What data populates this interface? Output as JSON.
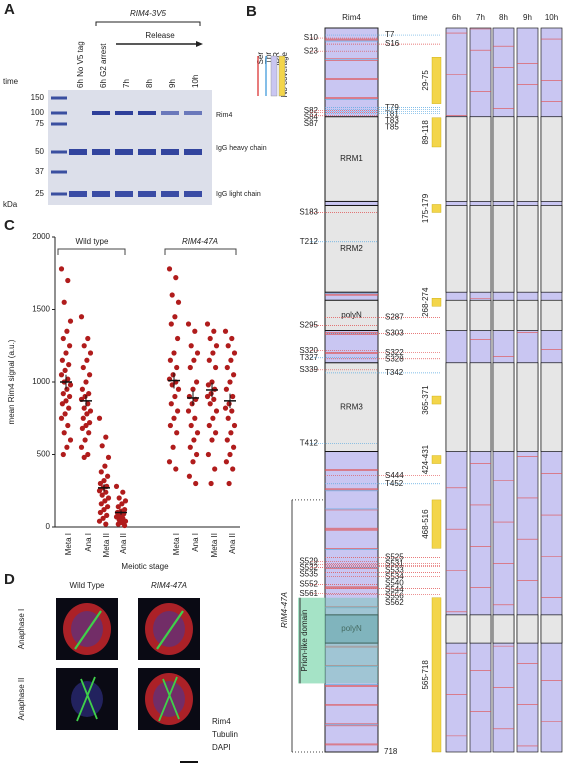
{
  "panel_a": {
    "label": "A",
    "time_label": "time",
    "unit": "kDa",
    "lanes": [
      "6h No V5 tag",
      "6h G2 arrest",
      "7h",
      "8h",
      "9h",
      "10h"
    ],
    "construct": "RIM4-3V5",
    "release": "Release",
    "markers": [
      150,
      100,
      75,
      50,
      37,
      25
    ],
    "bands": [
      "Rim4",
      "IgG heavy chain",
      "IgG light chain"
    ]
  },
  "panel_b": {
    "label": "B",
    "protein": "Rim4",
    "length": 718,
    "time_label": "time",
    "times": [
      "6h",
      "7h",
      "8h",
      "9h",
      "10h"
    ],
    "legend": [
      "Ser",
      "Thr",
      "IDR",
      "No coverage"
    ],
    "domains": [
      "RRM1",
      "RRM2",
      "polyN",
      "RRM3",
      "polyN"
    ],
    "sites_left": [
      "S10",
      "S23",
      "S82",
      "S84",
      "S87",
      "S183",
      "T212",
      "S295",
      "S320",
      "T327",
      "S339",
      "T412",
      "S529",
      "S532",
      "S535",
      "S552",
      "S561"
    ],
    "sites_right": [
      "T7",
      "S16",
      "T79",
      "T81",
      "T83",
      "T85",
      "S287",
      "S303",
      "S322",
      "S328",
      "T342",
      "S444",
      "T452",
      "S525",
      "S531",
      "S533",
      "S534",
      "S540",
      "S544",
      "S556",
      "S562"
    ],
    "no_coverage": [
      "29-75",
      "89-118",
      "175-179",
      "268-274",
      "365-371",
      "424-431",
      "468-516",
      "565-718"
    ],
    "mutant": "RIM4-47A",
    "prion": "Prion-like domain"
  },
  "chart_data": {
    "type": "strip",
    "label": "C",
    "ylabel": "mean Rim4 signal (a.u.)",
    "xlabel": "Meiotic stage",
    "groups": [
      "Wild type",
      "RIM4-47A"
    ],
    "categories": [
      "Meta I",
      "Ana I",
      "Meta II",
      "Ana II",
      "Meta I",
      "Ana I",
      "Meta II",
      "Ana II"
    ],
    "color": "#b01c1c",
    "ylim": [
      0,
      2000
    ],
    "yticks": [
      0,
      500,
      1000,
      1500,
      2000
    ],
    "points": [
      [
        1780,
        1700,
        1550,
        1420,
        1350,
        1300,
        1250,
        1200,
        1150,
        1120,
        1080,
        1050,
        1020,
        1000,
        980,
        950,
        920,
        900,
        870,
        850,
        820,
        780,
        750,
        700,
        650,
        600,
        550,
        500
      ],
      [
        1450,
        1300,
        1250,
        1200,
        1150,
        1100,
        1050,
        1000,
        950,
        920,
        900,
        880,
        850,
        820,
        800,
        780,
        750,
        720,
        700,
        680,
        650,
        600,
        550,
        500,
        480
      ],
      [
        750,
        620,
        560,
        480,
        420,
        380,
        350,
        320,
        300,
        280,
        270,
        250,
        240,
        220,
        200,
        180,
        160,
        140,
        120,
        100,
        80,
        60,
        40,
        20
      ],
      [
        280,
        240,
        200,
        180,
        160,
        140,
        120,
        110,
        100,
        90,
        80,
        70,
        60,
        50,
        40,
        30,
        20,
        10
      ],
      [
        1780,
        1720,
        1600,
        1550,
        1450,
        1400,
        1300,
        1200,
        1150,
        1100,
        1050,
        1020,
        1000,
        980,
        950,
        900,
        850,
        800,
        750,
        700,
        650,
        550,
        450,
        400
      ],
      [
        1400,
        1350,
        1250,
        1200,
        1150,
        1100,
        1000,
        950,
        900,
        880,
        850,
        800,
        750,
        700,
        650,
        600,
        550,
        500,
        450,
        350,
        300
      ],
      [
        1400,
        1350,
        1300,
        1250,
        1200,
        1150,
        1100,
        1000,
        980,
        950,
        920,
        900,
        880,
        850,
        800,
        750,
        700,
        650,
        600,
        500,
        400,
        300
      ],
      [
        1350,
        1300,
        1250,
        1200,
        1150,
        1100,
        1050,
        1000,
        950,
        900,
        850,
        820,
        800,
        750,
        700,
        650,
        600,
        550,
        500,
        450,
        400,
        300
      ]
    ],
    "means": [
      1000,
      870,
      270,
      100,
      1010,
      890,
      945,
      870
    ],
    "errors": [
      50,
      40,
      25,
      15,
      55,
      50,
      50,
      50
    ]
  },
  "panel_d": {
    "label": "D",
    "columns": [
      "Wild Type",
      "RIM4-47A"
    ],
    "rows": [
      "Anaphase I",
      "Anaphase II"
    ],
    "legend": [
      "Rim4",
      "Tubulin",
      "DAPI"
    ]
  }
}
